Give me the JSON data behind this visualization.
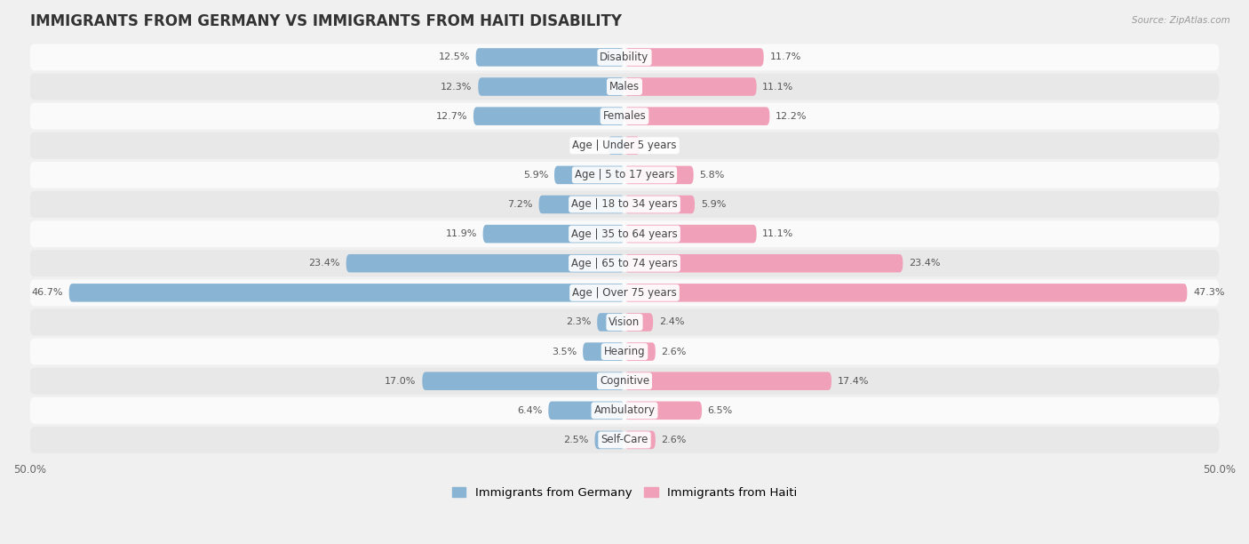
{
  "title": "IMMIGRANTS FROM GERMANY VS IMMIGRANTS FROM HAITI DISABILITY",
  "source": "Source: ZipAtlas.com",
  "categories": [
    "Disability",
    "Males",
    "Females",
    "Age | Under 5 years",
    "Age | 5 to 17 years",
    "Age | 18 to 34 years",
    "Age | 35 to 64 years",
    "Age | 65 to 74 years",
    "Age | Over 75 years",
    "Vision",
    "Hearing",
    "Cognitive",
    "Ambulatory",
    "Self-Care"
  ],
  "germany_values": [
    12.5,
    12.3,
    12.7,
    1.4,
    5.9,
    7.2,
    11.9,
    23.4,
    46.7,
    2.3,
    3.5,
    17.0,
    6.4,
    2.5
  ],
  "haiti_values": [
    11.7,
    11.1,
    12.2,
    1.3,
    5.8,
    5.9,
    11.1,
    23.4,
    47.3,
    2.4,
    2.6,
    17.4,
    6.5,
    2.6
  ],
  "germany_color": "#8ab4d4",
  "haiti_color": "#f0a0b8",
  "germany_label": "Immigrants from Germany",
  "haiti_label": "Immigrants from Haiti",
  "axis_max": 50.0,
  "background_color": "#f0f0f0",
  "row_color_even": "#fafafa",
  "row_color_odd": "#e8e8e8",
  "title_fontsize": 12,
  "label_fontsize": 8.5,
  "value_fontsize": 8,
  "legend_fontsize": 9.5
}
